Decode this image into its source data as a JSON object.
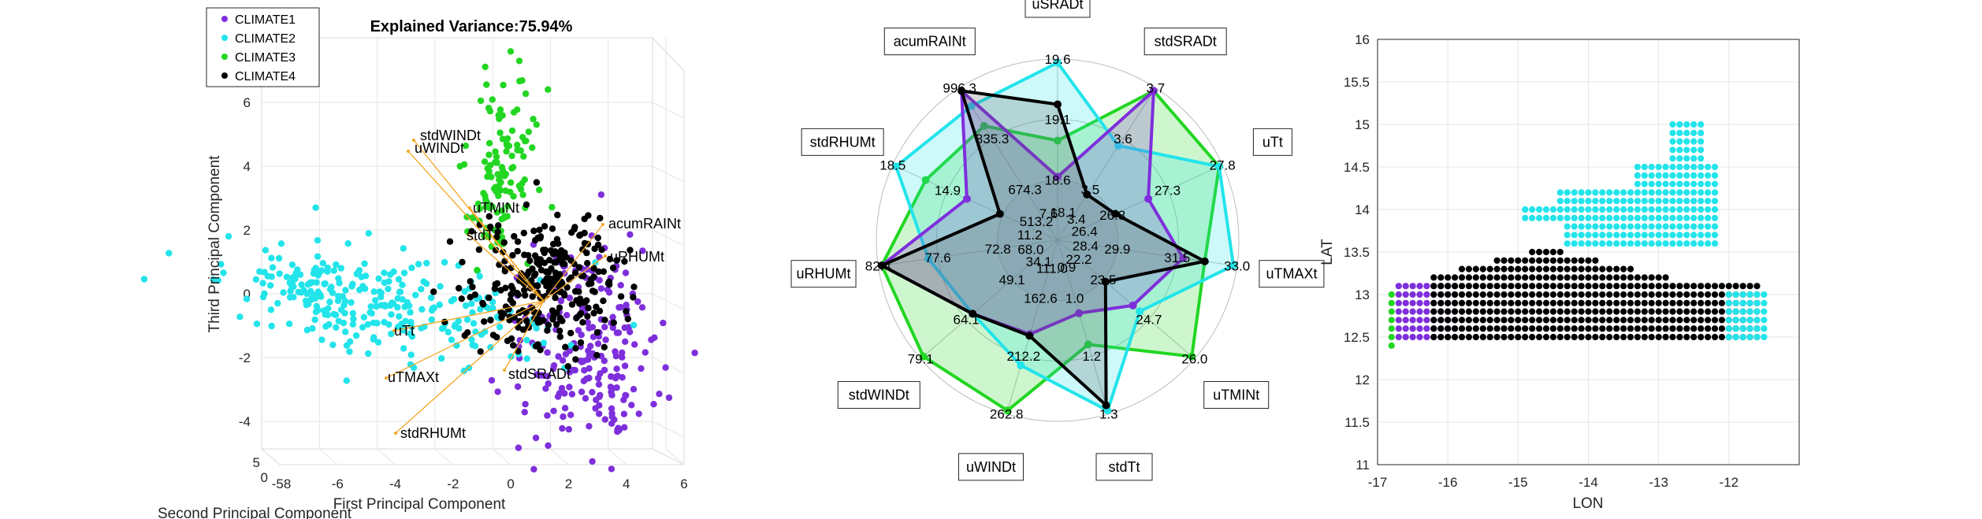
{
  "colors": {
    "climate1": "#7e2fdc",
    "climate2": "#22e4ea",
    "climate3": "#22d622",
    "climate4": "#000000",
    "loading": "#f5a623",
    "axis": "#262626",
    "grid": "#e6e6e6"
  },
  "pca": {
    "title": "Explained Variance:75.94%",
    "xlabel": "First Principal Component",
    "ylabel": "Third Principal Component",
    "zlabel": "Second Principal Component",
    "xticks": [
      "-58",
      "-6",
      "-4",
      "-2",
      "0",
      "2",
      "4",
      "6"
    ],
    "yticks": [
      "6",
      "4",
      "2",
      "0",
      "-2",
      "-4"
    ],
    "zticks": [
      "5",
      "0"
    ],
    "legend": [
      "CLIMATE1",
      "CLIMATE2",
      "CLIMATE3",
      "CLIMATE4"
    ],
    "loadings": [
      {
        "label": "stdWINDt"
      },
      {
        "label": "uWINDt"
      },
      {
        "label": "uTMINt"
      },
      {
        "label": "stdTt"
      },
      {
        "label": "acumRAINt"
      },
      {
        "label": "uRHUMt"
      },
      {
        "label": "uTt"
      },
      {
        "label": "uTMAXt"
      },
      {
        "label": "stdSRADt"
      },
      {
        "label": "stdRHUMt"
      }
    ]
  },
  "radar": {
    "axes": [
      "uSRADt",
      "stdSRADt",
      "uTt",
      "uTMAXt",
      "uTMINt",
      "stdTt",
      "uWINDt",
      "stdWINDt",
      "uRHUMt",
      "stdRHUMt",
      "acumRAINt"
    ],
    "ring_labels": [
      [
        "18.6",
        "19.1",
        "19.6"
      ],
      [
        "3.5",
        "3.6",
        "3.7"
      ],
      [
        "26.8",
        "27.3",
        "27.8"
      ],
      [
        "29.9",
        "31.5",
        "33.0"
      ],
      [
        "23.5",
        "24.7",
        "26.0"
      ],
      [
        "1.0",
        "1.2",
        "1.3"
      ],
      [
        "162.6",
        "212.2",
        "262.8"
      ],
      [
        "49.1",
        "64.1",
        "79.1"
      ],
      [
        "72.8",
        "77.6",
        "82.4"
      ],
      [
        "14.9",
        "18.5"
      ],
      [
        "674.3",
        "835.3",
        "996.3"
      ]
    ],
    "inner_labels": [
      "18.1",
      "3.4",
      "26.4",
      "28.4",
      "22.2",
      "0.9",
      "111.0",
      "34.1",
      "68.0",
      "11.2",
      "513.2",
      "7.6"
    ]
  },
  "chart_data": [
    {
      "type": "scatter",
      "title": "Explained Variance:75.94%",
      "xlabel": "First Principal Component",
      "ylabel": "Third Principal Component",
      "zlabel": "Second Principal Component",
      "xlim": [
        -8,
        6
      ],
      "ylim": [
        -4.5,
        6.5
      ],
      "legend_placement": "top-left",
      "grid": true,
      "series": [
        {
          "name": "CLIMATE1",
          "approx_x": [
            0.5,
            4.5
          ],
          "approx_y": [
            -4.2,
            2.5
          ]
        },
        {
          "name": "CLIMATE2",
          "approx_x": [
            -7.5,
            0
          ],
          "approx_y": [
            -2.5,
            1
          ]
        },
        {
          "name": "CLIMATE3",
          "approx_x": [
            -1,
            1.5
          ],
          "approx_y": [
            1.5,
            6
          ]
        },
        {
          "name": "CLIMATE4",
          "approx_x": [
            -0.5,
            2.5
          ],
          "approx_y": [
            -1,
            2
          ]
        }
      ]
    },
    {
      "type": "radar",
      "axes": [
        "uSRADt",
        "stdSRADt",
        "uTt",
        "uTMAXt",
        "uTMINt",
        "stdTt",
        "uWINDt",
        "stdWINDt",
        "uRHUMt",
        "stdRHUMt",
        "acumRAINt"
      ],
      "series": [
        {
          "name": "CLIMATE1",
          "values": [
            18.6,
            3.7,
            26.6,
            29.9,
            23.3,
            1.0,
            162.6,
            64.1,
            82.4,
            12.5,
            996.3
          ]
        },
        {
          "name": "CLIMATE2",
          "values": [
            19.6,
            3.45,
            27.8,
            33.0,
            23.8,
            1.3,
            212.2,
            64.1,
            77.6,
            18.5,
            900.0
          ]
        },
        {
          "name": "CLIMATE3",
          "values": [
            18.8,
            3.7,
            27.8,
            31.0,
            26.0,
            1.1,
            262.8,
            79.1,
            82.4,
            14.9,
            835.3
          ]
        },
        {
          "name": "CLIMATE4",
          "values": [
            19.1,
            3.4,
            26.3,
            31.0,
            22.5,
            1.25,
            162.6,
            64.1,
            82.4,
            11.2,
            996.3
          ]
        }
      ]
    },
    {
      "type": "scatter",
      "xlabel": "LON",
      "ylabel": "LAT",
      "xlim": [
        -17,
        -11
      ],
      "ylim": [
        11,
        16
      ],
      "xticks": [
        "-17",
        "-16",
        "-15",
        "-14",
        "-13",
        "-12"
      ],
      "yticks": [
        "16",
        "15.5",
        "15",
        "14.5",
        "14",
        "13.5",
        "13",
        "12.5",
        "12",
        "11.5",
        "11"
      ],
      "grid": true,
      "series": [
        {
          "name": "CLIMATE1",
          "approx_lon": [
            -16.75,
            -15.8
          ],
          "approx_lat": [
            12.45,
            13.15
          ]
        },
        {
          "name": "CLIMATE2",
          "approx_lon": [
            -14.9,
            -11.4
          ],
          "approx_lat": [
            12.45,
            15.05
          ]
        },
        {
          "name": "CLIMATE3",
          "approx_lon": [
            -16.85,
            -16.75
          ],
          "approx_lat": [
            12.35,
            13.0
          ]
        },
        {
          "name": "CLIMATE4",
          "approx_lon": [
            -16.3,
            -11.6
          ],
          "approx_lat": [
            12.45,
            13.55
          ]
        }
      ]
    }
  ]
}
